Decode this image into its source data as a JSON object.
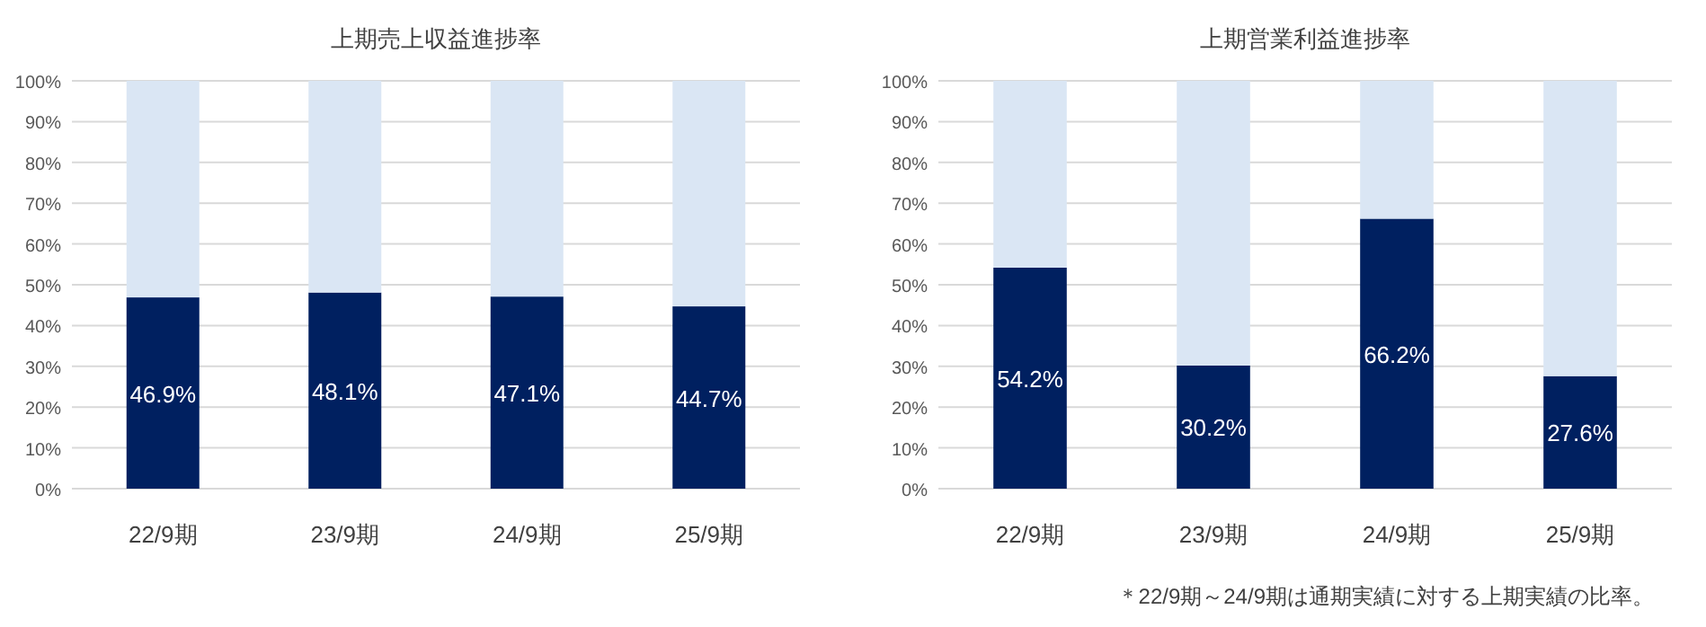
{
  "chart_data": [
    {
      "type": "bar",
      "title": "上期売上収益進捗率",
      "categories": [
        "22/9期",
        "23/9期",
        "24/9期",
        "25/9期"
      ],
      "stacked": true,
      "grid": "y",
      "ylim": [
        0,
        100
      ],
      "yticks": [
        {
          "value": 0,
          "label": "0%"
        },
        {
          "value": 10,
          "label": "10%"
        },
        {
          "value": 20,
          "label": "20%"
        },
        {
          "value": 30,
          "label": "30%"
        },
        {
          "value": 40,
          "label": "40%"
        },
        {
          "value": 50,
          "label": "50%"
        },
        {
          "value": 60,
          "label": "60%"
        },
        {
          "value": 70,
          "label": "70%"
        },
        {
          "value": 80,
          "label": "80%"
        },
        {
          "value": 90,
          "label": "90%"
        },
        {
          "value": 100,
          "label": "100%"
        }
      ],
      "series": [
        {
          "color": "#002060",
          "values": [
            46.9,
            48.1,
            47.1,
            44.7
          ],
          "value_labels": [
            "46.9%",
            "48.1%",
            "47.1%",
            "44.7%"
          ]
        },
        {
          "color": "#dae6f4",
          "values": [
            53.1,
            51.9,
            52.9,
            55.3
          ]
        }
      ]
    },
    {
      "type": "bar",
      "title": "上期営業利益進捗率",
      "categories": [
        "22/9期",
        "23/9期",
        "24/9期",
        "25/9期"
      ],
      "stacked": true,
      "grid": "y",
      "ylim": [
        0,
        100
      ],
      "yticks": [
        {
          "value": 0,
          "label": "0%"
        },
        {
          "value": 10,
          "label": "10%"
        },
        {
          "value": 20,
          "label": "20%"
        },
        {
          "value": 30,
          "label": "30%"
        },
        {
          "value": 40,
          "label": "40%"
        },
        {
          "value": 50,
          "label": "50%"
        },
        {
          "value": 60,
          "label": "60%"
        },
        {
          "value": 70,
          "label": "70%"
        },
        {
          "value": 80,
          "label": "80%"
        },
        {
          "value": 90,
          "label": "90%"
        },
        {
          "value": 100,
          "label": "100%"
        }
      ],
      "series": [
        {
          "color": "#002060",
          "values": [
            54.2,
            30.2,
            66.2,
            27.6
          ],
          "value_labels": [
            "54.2%",
            "30.2%",
            "66.2%",
            "27.6%"
          ]
        },
        {
          "color": "#dae6f4",
          "values": [
            45.8,
            69.8,
            33.8,
            72.4
          ]
        }
      ],
      "annotations": [
        "＊22/9期～24/9期は通期実績に対する上期実績の比率。"
      ]
    }
  ]
}
